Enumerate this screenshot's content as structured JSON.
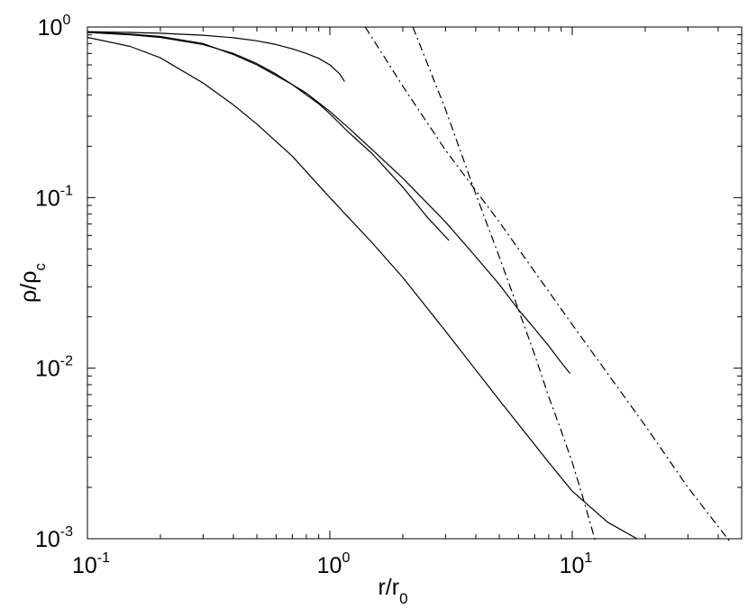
{
  "chart_data": {
    "type": "line",
    "title": "",
    "xlabel": {
      "base": "r/r",
      "sub": "0"
    },
    "ylabel": {
      "base": "ρ/ρ",
      "sub": "c"
    },
    "xscale": "log",
    "yscale": "log",
    "xlim": [
      0.1,
      50
    ],
    "ylim": [
      0.001,
      1
    ],
    "grid": false,
    "legend": "none",
    "x_ticks": [
      {
        "value": 0.1,
        "base": "10",
        "exp": "-1"
      },
      {
        "value": 1,
        "base": "10",
        "exp": "0"
      },
      {
        "value": 10,
        "base": "10",
        "exp": "1"
      }
    ],
    "y_ticks": [
      {
        "value": 0.001,
        "base": "10",
        "exp": "-3"
      },
      {
        "value": 0.01,
        "base": "10",
        "exp": "-2"
      },
      {
        "value": 0.1,
        "base": "10",
        "exp": "-1"
      },
      {
        "value": 1,
        "base": "10",
        "exp": "0"
      }
    ],
    "line_color": "#000000",
    "series": [
      {
        "style": "solid",
        "points": [
          [
            0.1,
            0.94
          ],
          [
            0.15,
            0.93
          ],
          [
            0.2,
            0.92
          ],
          [
            0.3,
            0.895
          ],
          [
            0.4,
            0.865
          ],
          [
            0.5,
            0.83
          ],
          [
            0.6,
            0.79
          ],
          [
            0.7,
            0.745
          ],
          [
            0.8,
            0.7
          ],
          [
            0.9,
            0.655
          ],
          [
            1.0,
            0.6
          ],
          [
            1.1,
            0.53
          ],
          [
            1.15,
            0.48
          ]
        ]
      },
      {
        "style": "solid",
        "points": [
          [
            0.1,
            0.935
          ],
          [
            0.15,
            0.91
          ],
          [
            0.2,
            0.88
          ],
          [
            0.3,
            0.8
          ],
          [
            0.4,
            0.69
          ],
          [
            0.5,
            0.6
          ],
          [
            0.6,
            0.52
          ],
          [
            0.7,
            0.46
          ],
          [
            0.8,
            0.4
          ],
          [
            0.9,
            0.355
          ],
          [
            1.0,
            0.31
          ],
          [
            1.2,
            0.24
          ],
          [
            1.5,
            0.18
          ],
          [
            2.0,
            0.115
          ],
          [
            2.5,
            0.078
          ],
          [
            3.1,
            0.056
          ]
        ]
      },
      {
        "style": "solid",
        "points": [
          [
            0.1,
            0.93
          ],
          [
            0.15,
            0.9
          ],
          [
            0.2,
            0.87
          ],
          [
            0.3,
            0.79
          ],
          [
            0.4,
            0.7
          ],
          [
            0.5,
            0.61
          ],
          [
            0.6,
            0.53
          ],
          [
            0.7,
            0.46
          ],
          [
            0.8,
            0.41
          ],
          [
            0.9,
            0.36
          ],
          [
            1.0,
            0.32
          ],
          [
            1.2,
            0.255
          ],
          [
            1.5,
            0.19
          ],
          [
            2.0,
            0.13
          ],
          [
            3.0,
            0.072
          ],
          [
            4.0,
            0.045
          ],
          [
            5.0,
            0.031
          ],
          [
            6.0,
            0.022
          ],
          [
            7.0,
            0.017
          ],
          [
            8.0,
            0.0135
          ],
          [
            9.0,
            0.0108
          ],
          [
            9.8,
            0.0093
          ]
        ]
      },
      {
        "style": "solid",
        "points": [
          [
            0.1,
            0.87
          ],
          [
            0.15,
            0.77
          ],
          [
            0.2,
            0.66
          ],
          [
            0.3,
            0.47
          ],
          [
            0.4,
            0.35
          ],
          [
            0.5,
            0.27
          ],
          [
            0.7,
            0.175
          ],
          [
            1.0,
            0.1
          ],
          [
            1.5,
            0.054
          ],
          [
            2.0,
            0.034
          ],
          [
            3.0,
            0.0165
          ],
          [
            5.0,
            0.0065
          ],
          [
            8.0,
            0.0028
          ],
          [
            10.0,
            0.0019
          ],
          [
            14.0,
            0.00125
          ],
          [
            18.5,
            0.001
          ]
        ]
      },
      {
        "style": "dashdot",
        "points": [
          [
            1.4,
            1.0
          ],
          [
            2.0,
            0.45
          ],
          [
            3.0,
            0.19
          ],
          [
            5.0,
            0.072
          ],
          [
            10.0,
            0.018
          ],
          [
            20.0,
            0.0046
          ],
          [
            30.0,
            0.002
          ],
          [
            45.0,
            0.00095
          ]
        ]
      },
      {
        "style": "dashdot",
        "points": [
          [
            2.2,
            1.0
          ],
          [
            3.0,
            0.33
          ],
          [
            4.0,
            0.105
          ],
          [
            5.0,
            0.045
          ],
          [
            6.0,
            0.022
          ],
          [
            7.0,
            0.012
          ],
          [
            8.0,
            0.0068
          ],
          [
            9.0,
            0.0043
          ],
          [
            10.0,
            0.0028
          ],
          [
            11.0,
            0.0018
          ],
          [
            12.5,
            0.00095
          ]
        ]
      }
    ]
  }
}
